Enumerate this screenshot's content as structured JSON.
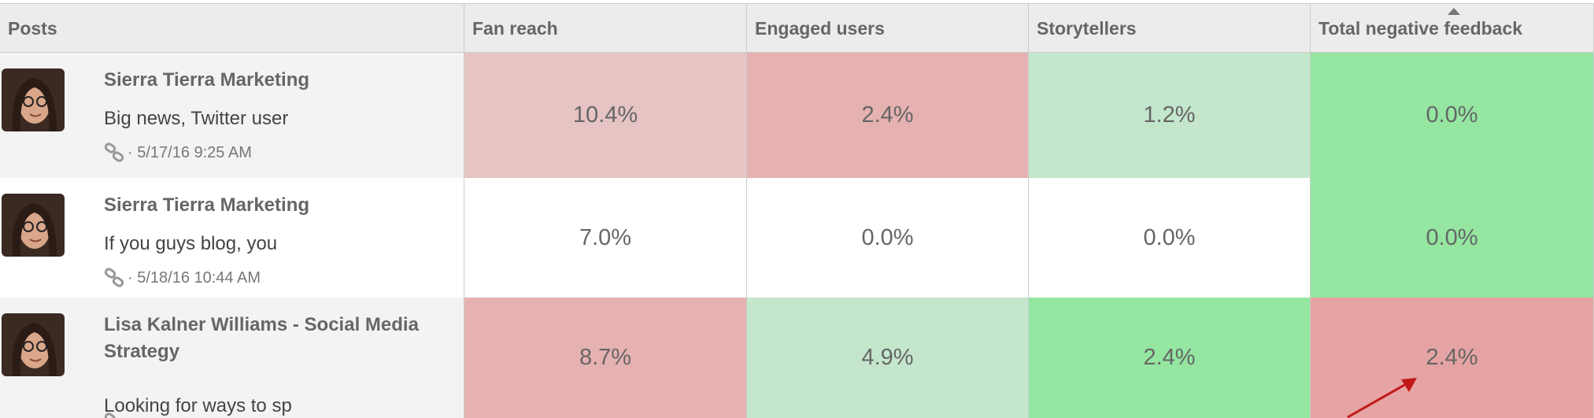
{
  "table": {
    "headers": [
      "Posts",
      "Fan reach",
      "Engaged users",
      "Storytellers",
      "Total negative feedback"
    ],
    "rows": [
      {
        "author": "Sierra Tierra Marketing",
        "text": "Big news, Twitter user",
        "date": "· 5/17/16 9:25 AM",
        "bg": "#f3f3f3",
        "cells": [
          {
            "text": "10.4%",
            "color": "#e6c4c4"
          },
          {
            "text": "2.4%",
            "color": "#e6b1b1"
          },
          {
            "text": "1.2%",
            "color": "#c4e6cc"
          },
          {
            "text": "0.0%",
            "color": "#94e6a1"
          }
        ]
      },
      {
        "author": "Sierra Tierra Marketing",
        "text": "If you guys blog, you",
        "date": "· 5/18/16 10:44 AM",
        "bg": "#ffffff",
        "cells": [
          {
            "text": "7.0%",
            "color": "#ffffff"
          },
          {
            "text": "0.0%",
            "color": "#ffffff"
          },
          {
            "text": "0.0%",
            "color": "#ffffff"
          },
          {
            "text": "0.0%",
            "color": "#94e6a1"
          }
        ]
      },
      {
        "author": "Lisa Kalner Williams - Social Media Strategy",
        "text": "Looking for ways to sp",
        "bg": "#f3f3f3",
        "cells": [
          {
            "text": "8.7%",
            "color": "#e6b1b1"
          },
          {
            "text": "4.9%",
            "color": "#c4e6cc"
          },
          {
            "text": "2.4%",
            "color": "#94e6a1"
          },
          {
            "text": "2.4%",
            "color": "#e6a3a3"
          }
        ]
      }
    ]
  }
}
